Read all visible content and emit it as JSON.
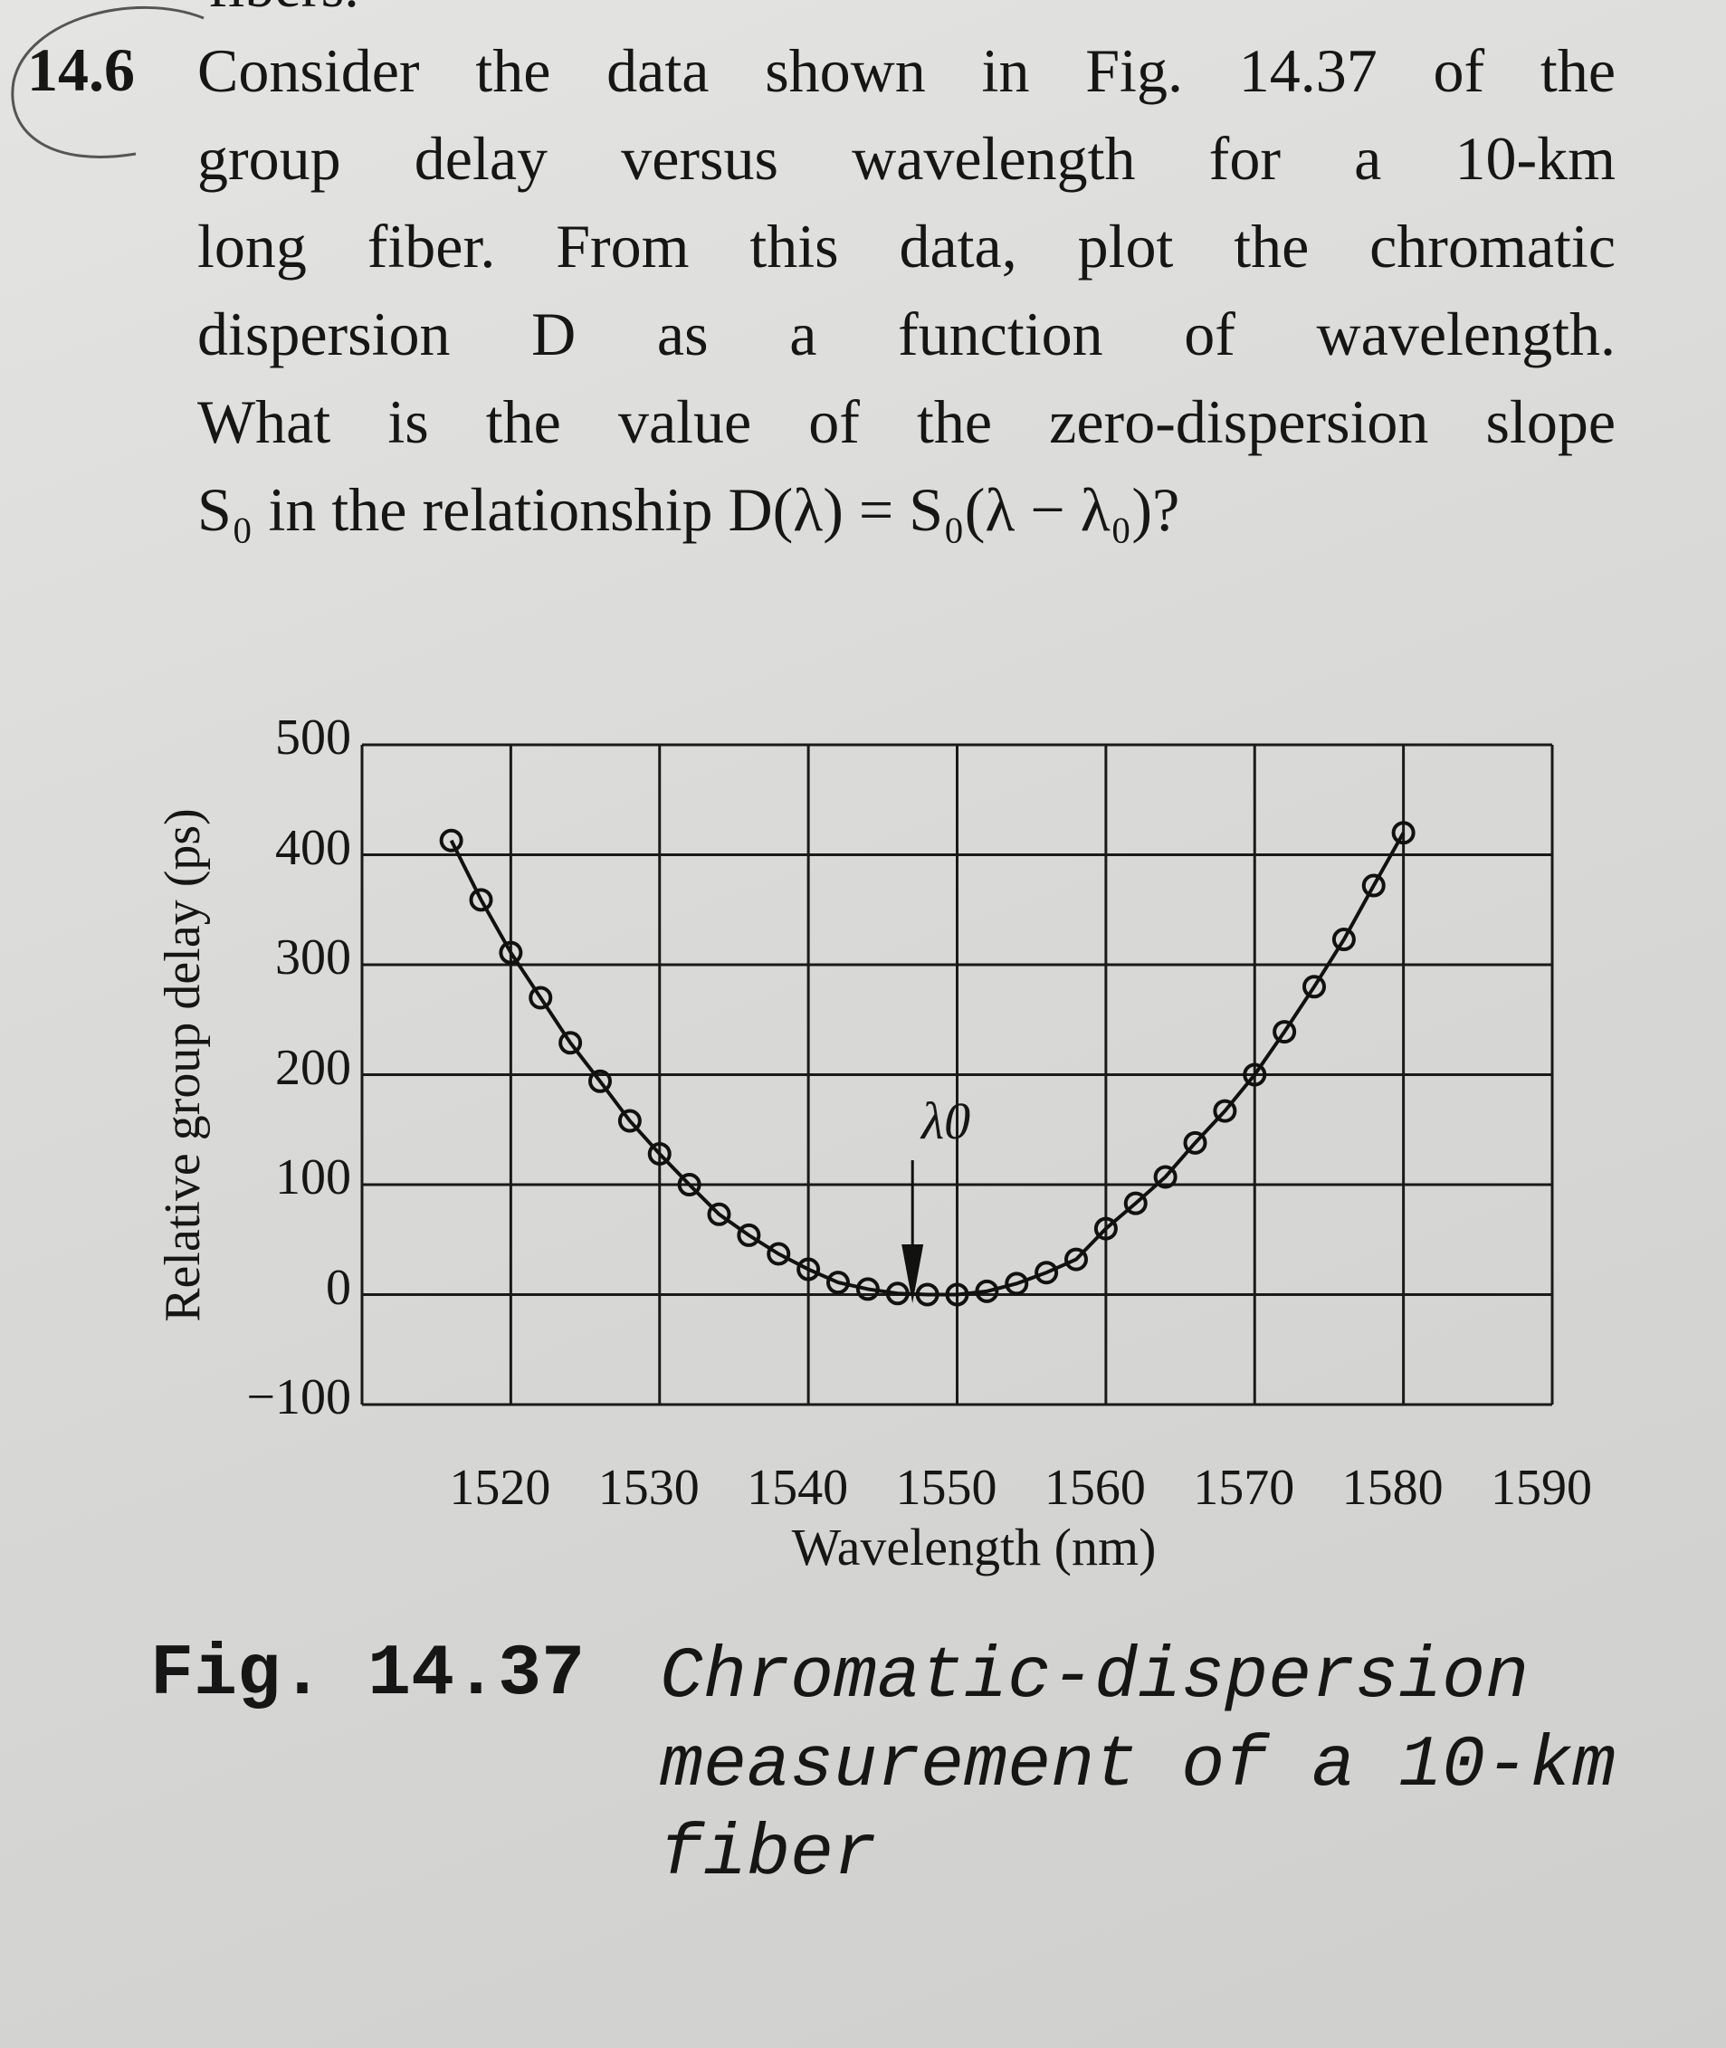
{
  "top_cut_text": "fibers.",
  "problem": {
    "number": "14.6",
    "lines": [
      "Consider the data shown in Fig. 14.37 of the",
      "group delay versus wavelength for a 10-km",
      "long fiber. From this data, plot the chromatic",
      "dispersion D as a function of wavelength.",
      "What is the value of the zero-dispersion slope",
      "S₀ in the relationship D(λ) = S₀(λ − λ₀)?"
    ]
  },
  "figure": {
    "label": "Fig. 14.37",
    "caption_lines": [
      "Chromatic-dispersion",
      "measurement of a 10-km",
      "fiber"
    ]
  },
  "chart_data": {
    "type": "scatter",
    "xlabel": "Wavelength (nm)",
    "ylabel": "Relative group delay (ps)",
    "xlim": [
      1510,
      1590
    ],
    "ylim": [
      -100,
      500
    ],
    "x_ticks": [
      "1520",
      "1530",
      "1540",
      "1550",
      "1560",
      "1570",
      "1580",
      "1590"
    ],
    "y_ticks": [
      "500",
      "400",
      "300",
      "200",
      "100",
      "0",
      "−100"
    ],
    "grid": true,
    "marker": "open-circle",
    "connected": true,
    "annotation": {
      "text": "λ0",
      "x": 1547,
      "arrow": "down"
    },
    "x": [
      1516,
      1518,
      1520,
      1522,
      1524,
      1526,
      1528,
      1530,
      1532,
      1534,
      1536,
      1538,
      1540,
      1542,
      1544,
      1546,
      1548,
      1550,
      1552,
      1554,
      1556,
      1558,
      1560,
      1562,
      1564,
      1566,
      1568,
      1570,
      1572,
      1574,
      1576,
      1578,
      1580
    ],
    "y": [
      413,
      359,
      311,
      270,
      229,
      194,
      158,
      128,
      100,
      73,
      54,
      37,
      23,
      11,
      5,
      1,
      0,
      0,
      3,
      10,
      20,
      32,
      60,
      83,
      107,
      138,
      167,
      200,
      239,
      280,
      323,
      372,
      420
    ]
  }
}
